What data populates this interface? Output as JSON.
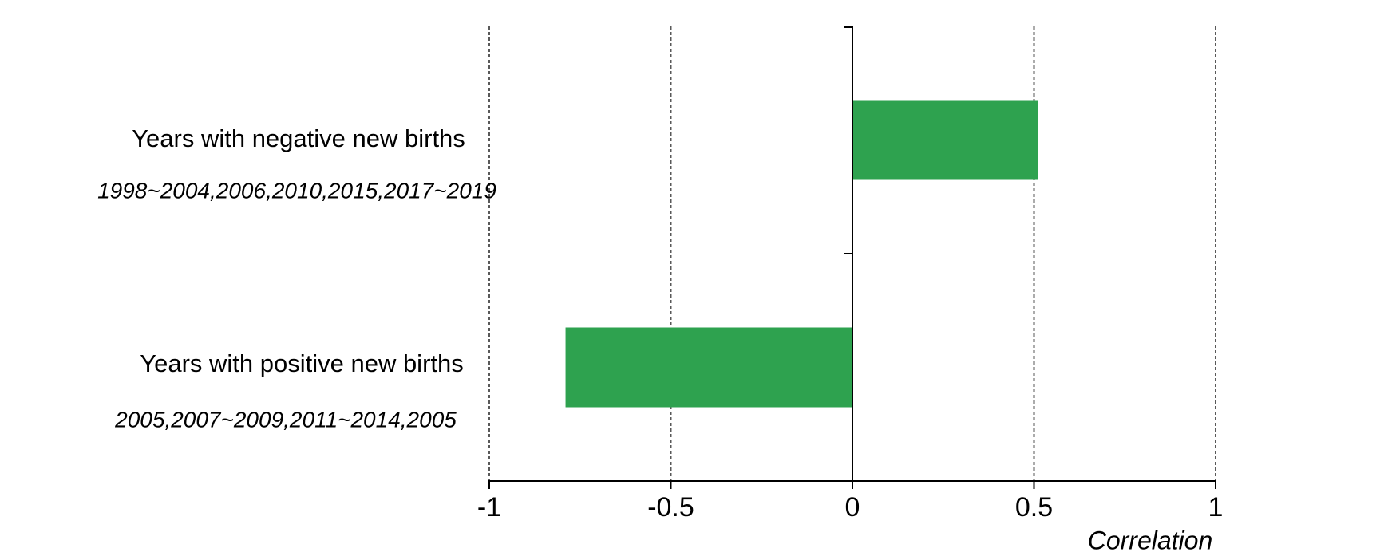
{
  "chart_data": {
    "type": "bar",
    "orientation": "horizontal",
    "title": "",
    "xlabel": "Correlation",
    "ylabel": "",
    "xlim": [
      -1,
      1
    ],
    "xticks": [
      -1,
      -0.5,
      0,
      0.5,
      1
    ],
    "xtick_labels": [
      "-1",
      "-0.5",
      "0",
      "0.5",
      "1"
    ],
    "grid": "vertical dashed gridlines at -1, -0.5, 0.5, 1; solid vertical axis line at 0",
    "legend": "none",
    "categories": [
      "Years with negative new births",
      "Years with positive new births"
    ],
    "category_subtitles": [
      "1998~2004,2006,2010,2015,2017~2019",
      "2005,2007~2009,2011~2014,2005"
    ],
    "values": [
      0.51,
      -0.79
    ],
    "colors": {
      "bar": "#2ea24f",
      "gridline": "#595959",
      "axis": "#000000",
      "text": "#000000",
      "background": "#ffffff"
    }
  }
}
